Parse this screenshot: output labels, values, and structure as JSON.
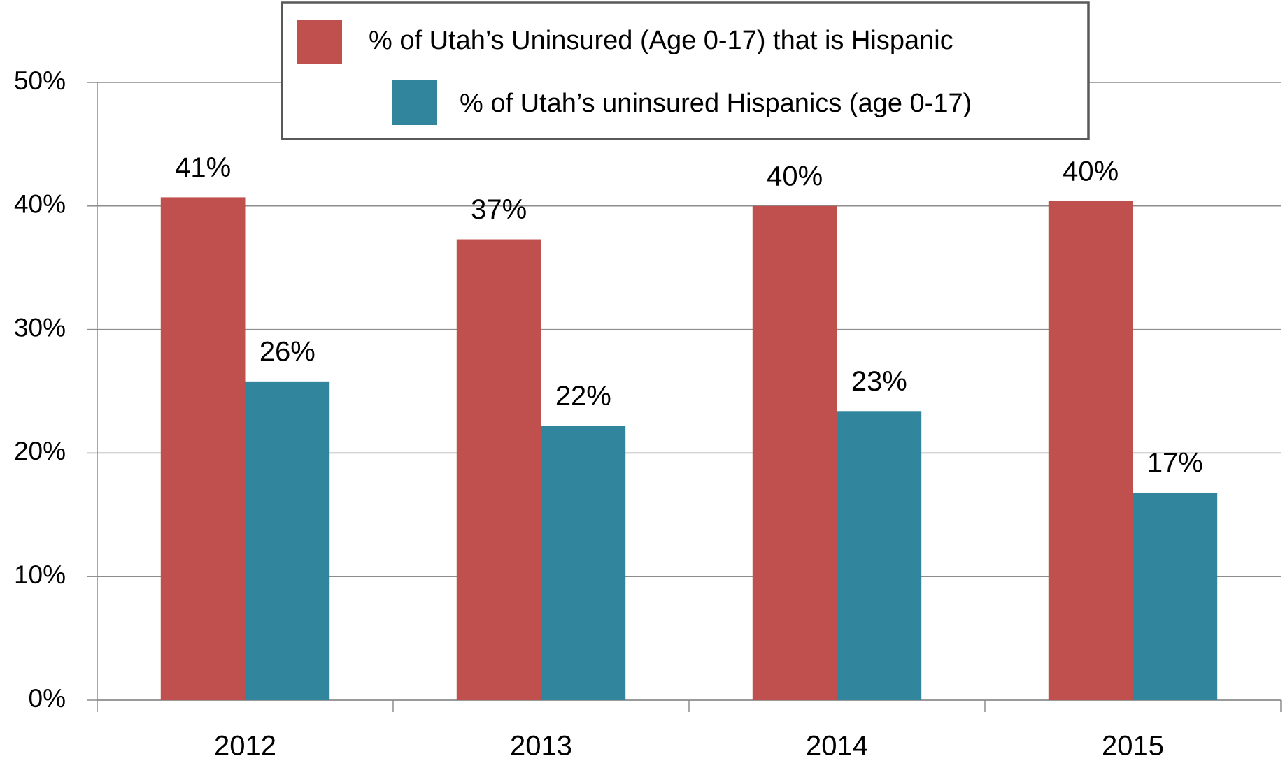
{
  "chart_data": {
    "type": "bar",
    "categories": [
      "2012",
      "2013",
      "2014",
      "2015"
    ],
    "series": [
      {
        "name": "% of Utah’s Uninsured (Age 0-17) that is Hispanic",
        "color": "#c0504d",
        "values": [
          40.7,
          37.3,
          40.0,
          40.4
        ],
        "value_labels": [
          "41%",
          "37%",
          "40%",
          "40%"
        ]
      },
      {
        "name": "% of Utah’s uninsured Hispanics (age 0-17)",
        "color": "#31859c",
        "values": [
          25.8,
          22.2,
          23.4,
          16.8
        ],
        "value_labels": [
          "26%",
          "22%",
          "23%",
          "17%"
        ]
      }
    ],
    "ylim": [
      0,
      50
    ],
    "yticks": [
      {
        "value": 0,
        "label": "0%"
      },
      {
        "value": 10,
        "label": "10%"
      },
      {
        "value": 20,
        "label": "20%"
      },
      {
        "value": 30,
        "label": "30%"
      },
      {
        "value": 40,
        "label": "40%"
      },
      {
        "value": 50,
        "label": "50%"
      }
    ],
    "grid": true
  }
}
